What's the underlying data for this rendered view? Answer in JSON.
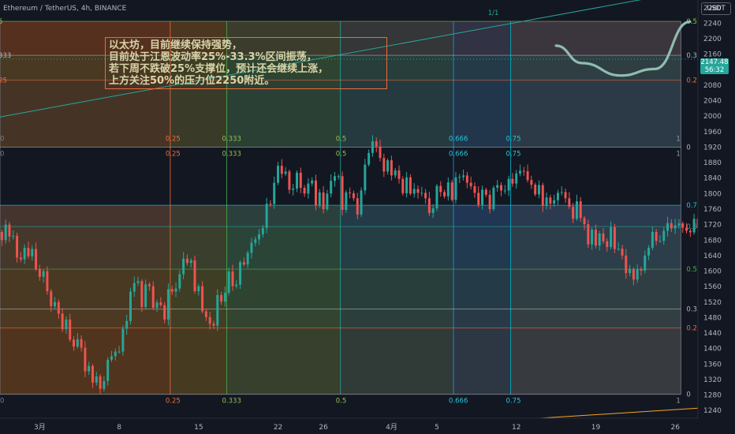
{
  "header": {
    "title": "Ethereum / TetherUS, 4h, BINANCE",
    "currency": "USDT"
  },
  "price_badge": {
    "price": "2147.48",
    "countdown": "56:32"
  },
  "annotation": {
    "lines": [
      "以太坊，目前继续保持强势，",
      "目前处于江恩波动率25%-33.3%区间振荡，",
      "若下周不跌破25%支撑位，预计还会继续上涨，",
      "上方关注50%的压力位2250附近。"
    ]
  },
  "colors": {
    "background": "#131722",
    "up": "#26a69a",
    "down": "#ef5350",
    "annotation_border": "#f06a3a",
    "annotation_text": "#d8d4a8",
    "projection": "#8fbcb0"
  },
  "chart_data": {
    "type": "candlestick",
    "symbol": "Ethereum / TetherUS",
    "timeframe": "4h",
    "exchange": "BINANCE",
    "ylim": [
      1220,
      2300
    ],
    "y_ticks": [
      1240,
      1280,
      1320,
      1360,
      1400,
      1440,
      1480,
      1520,
      1560,
      1600,
      1640,
      1680,
      1720,
      1760,
      1800,
      1840,
      1880,
      1920,
      1960,
      2000,
      2040,
      2080,
      2120,
      2160,
      2200,
      2240,
      2280
    ],
    "x_ticks": [
      "3月",
      "8",
      "15",
      "22",
      "26",
      "4月",
      "5",
      "12",
      "19",
      "26"
    ],
    "x_tick_days": [
      1,
      8,
      15,
      22,
      26,
      32,
      36,
      43,
      50,
      57
    ],
    "xlim": [
      -2.5,
      59
    ],
    "last_price": 2147.48,
    "candle_step_days": 0.3333,
    "first_candle_day": -3,
    "closes": [
      1760,
      1701,
      1680,
      1720,
      1689,
      1691,
      1635,
      1630,
      1660,
      1638,
      1657,
      1605,
      1585,
      1600,
      1548,
      1509,
      1520,
      1490,
      1450,
      1475,
      1423,
      1405,
      1424,
      1402,
      1341,
      1355,
      1312,
      1328,
      1296,
      1316,
      1371,
      1380,
      1392,
      1392,
      1451,
      1471,
      1547,
      1569,
      1574,
      1507,
      1566,
      1561,
      1505,
      1519,
      1512,
      1475,
      1553,
      1547,
      1555,
      1592,
      1632,
      1621,
      1628,
      1548,
      1561,
      1496,
      1481,
      1464,
      1459,
      1538,
      1521,
      1544,
      1599,
      1561,
      1565,
      1623,
      1617,
      1647,
      1673,
      1682,
      1695,
      1711,
      1774,
      1773,
      1828,
      1872,
      1851,
      1857,
      1810,
      1813,
      1854,
      1815,
      1800,
      1826,
      1834,
      1769,
      1803,
      1760,
      1800,
      1833,
      1845,
      1845,
      1758,
      1803,
      1801,
      1788,
      1746,
      1808,
      1875,
      1905,
      1935,
      1922,
      1892,
      1857,
      1886,
      1847,
      1860,
      1838,
      1801,
      1842,
      1800,
      1812,
      1802,
      1802,
      1788,
      1750,
      1762,
      1820,
      1804,
      1793,
      1829,
      1784,
      1842,
      1843,
      1847,
      1828,
      1819,
      1802,
      1771,
      1810,
      1797,
      1760,
      1815,
      1822,
      1808,
      1808,
      1838,
      1826,
      1852,
      1859,
      1858,
      1835,
      1823,
      1798,
      1822,
      1768,
      1790,
      1774,
      1783,
      1802,
      1804,
      1788,
      1766,
      1735,
      1780,
      1737,
      1721,
      1669,
      1707,
      1666,
      1697,
      1677,
      1662,
      1713,
      1657,
      1658,
      1640,
      1595,
      1605,
      1578,
      1605,
      1601,
      1640,
      1660,
      1701,
      1678,
      1678,
      1704,
      1724,
      1710,
      1718,
      1723,
      1712,
      1704,
      1700,
      1735,
      1712,
      1703,
      1725,
      1755,
      1792,
      1769,
      1793,
      1819,
      1811,
      1779,
      1787,
      1803,
      1844,
      1809,
      1849,
      1871,
      1860,
      1915,
      1914,
      1902,
      1960,
      1951,
      1934,
      1969,
      1987,
      1957,
      1930,
      1977,
      1977,
      2038,
      2101,
      2120,
      2069,
      2079,
      2076,
      2049,
      2085,
      2041,
      2061,
      2030,
      1998,
      2063,
      2043,
      2052,
      2060,
      2074,
      2082,
      2127,
      2109,
      2111,
      2098,
      2124,
      2072,
      2070,
      2027,
      1966,
      1955,
      1955,
      1989,
      1999,
      1985,
      2008,
      2045,
      2010,
      2034,
      2058,
      2042,
      2070,
      2060,
      2054,
      2051,
      2073,
      2088,
      2149,
      2163,
      2156,
      2157,
      2115,
      2131,
      2131,
      2147
    ],
    "projection": {
      "type": "curve",
      "points_price": [
        [
          46.5,
          2182
        ],
        [
          48.8,
          2137
        ],
        [
          52.2,
          2105
        ],
        [
          55.2,
          2122
        ],
        [
          58.3,
          2244
        ]
      ]
    },
    "gann_box": {
      "x_days": [
        -2.5,
        57.5
      ],
      "y_price_top": [
        1920,
        2240
      ],
      "y_price_bottom": [
        1280,
        1920
      ],
      "x_levels": [
        "0",
        "0.25",
        "0.333",
        "0.5",
        "0.666",
        "0.75",
        "1"
      ],
      "y_levels": [
        "0",
        "0.25",
        "0.333",
        "0.5",
        "0.666",
        "0.75",
        "1"
      ],
      "top_block_y_levels": [
        "0.5",
        "0.333",
        "0.25",
        "0"
      ],
      "top_block_y_prices": [
        2245,
        2157,
        2093,
        1920
      ],
      "bottom_block_y_levels": [
        "0.75",
        "0.666",
        "0.5",
        "0.333",
        "0.25",
        "0"
      ],
      "bottom_block_y_prices": [
        1770,
        1715,
        1605,
        1502,
        1453,
        1282
      ],
      "fill_colors_x": [
        "#8a4a12",
        "#6a5a1a",
        "#3e6a3a",
        "#2a5a5a",
        "#1e4e7e",
        "#3f5872",
        "#4a4a58"
      ],
      "fill_colors_y_top": [
        "#7a3a2a",
        "#4b5a3a",
        "#3a4a4a"
      ],
      "fill_colors_y_bottom": [
        "#3a4c6a",
        "#3a5a5a",
        "#4a5a3a",
        "#5a5a3a",
        "#6a4a2a",
        "#7a3a2a"
      ],
      "fan_label": "1/1"
    },
    "trend_lines": [
      {
        "from": [
          -2.5,
          1998
        ],
        "to": [
          58.3,
          2324
        ],
        "color": "#26a69a"
      },
      {
        "from": [
          44,
          1218
        ],
        "to": [
          59,
          1246
        ],
        "color": "#f5a623"
      }
    ]
  }
}
